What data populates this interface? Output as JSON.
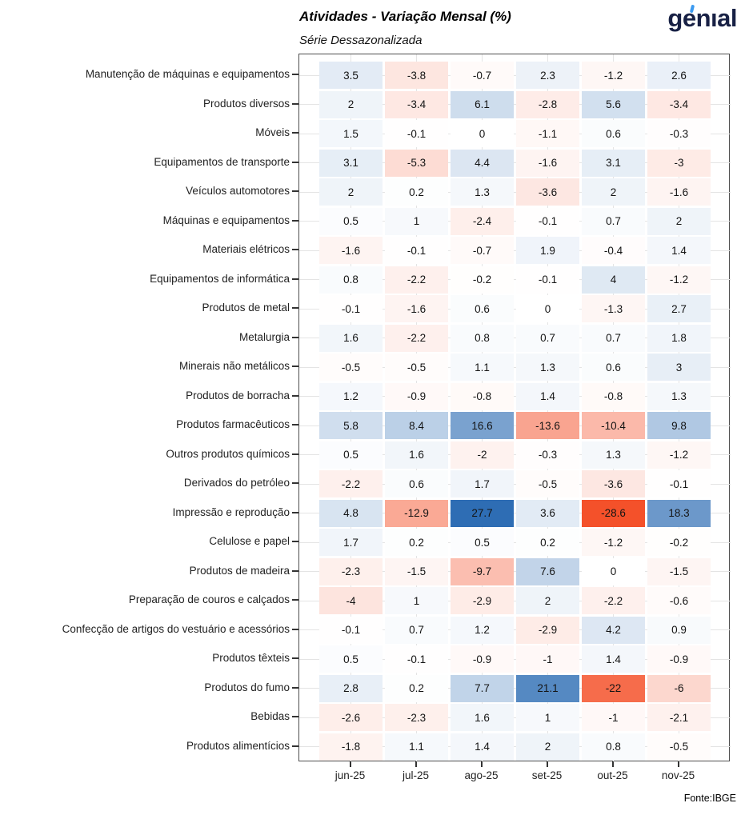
{
  "header": {
    "title": "Atividades - Variação Mensal (%)",
    "subtitle": "Série Dessazonalizada",
    "logo_text": "genıal"
  },
  "footer": {
    "source": "Fonte:IBGE"
  },
  "chart_data": {
    "type": "heatmap",
    "title": "Atividades - Variação Mensal (%)",
    "subtitle": "Série Dessazonalizada",
    "columns": [
      "jun-25",
      "jul-25",
      "ago-25",
      "set-25",
      "out-25",
      "nov-25"
    ],
    "rows": [
      {
        "name": "Manutenção de máquinas e equipamentos",
        "values": [
          3.5,
          -3.8,
          -0.7,
          2.3,
          -1.2,
          2.6
        ]
      },
      {
        "name": "Produtos diversos",
        "values": [
          2,
          -3.4,
          6.1,
          -2.8,
          5.6,
          -3.4
        ]
      },
      {
        "name": "Móveis",
        "values": [
          1.5,
          -0.1,
          0,
          -1.1,
          0.6,
          -0.3
        ]
      },
      {
        "name": "Equipamentos de transporte",
        "values": [
          3.1,
          -5.3,
          4.4,
          -1.6,
          3.1,
          -3
        ]
      },
      {
        "name": "Veículos automotores",
        "values": [
          2,
          0.2,
          1.3,
          -3.6,
          2,
          -1.6
        ]
      },
      {
        "name": "Máquinas e equipamentos",
        "values": [
          0.5,
          1,
          -2.4,
          -0.1,
          0.7,
          2
        ]
      },
      {
        "name": "Materiais elétricos",
        "values": [
          -1.6,
          -0.1,
          -0.7,
          1.9,
          -0.4,
          1.4
        ]
      },
      {
        "name": "Equipamentos de informática",
        "values": [
          0.8,
          -2.2,
          -0.2,
          -0.1,
          4,
          -1.2
        ]
      },
      {
        "name": "Produtos de metal",
        "values": [
          -0.1,
          -1.6,
          0.6,
          0,
          -1.3,
          2.7
        ]
      },
      {
        "name": "Metalurgia",
        "values": [
          1.6,
          -2.2,
          0.8,
          0.7,
          0.7,
          1.8
        ]
      },
      {
        "name": "Minerais não metálicos",
        "values": [
          -0.5,
          -0.5,
          1.1,
          1.3,
          0.6,
          3
        ]
      },
      {
        "name": "Produtos de borracha",
        "values": [
          1.2,
          -0.9,
          -0.8,
          1.4,
          -0.8,
          1.3
        ]
      },
      {
        "name": "Produtos farmacêuticos",
        "values": [
          5.8,
          8.4,
          16.6,
          -13.6,
          -10.4,
          9.8
        ]
      },
      {
        "name": "Outros produtos químicos",
        "values": [
          0.5,
          1.6,
          -2,
          -0.3,
          1.3,
          -1.2
        ]
      },
      {
        "name": "Derivados do petróleo",
        "values": [
          -2.2,
          0.6,
          1.7,
          -0.5,
          -3.6,
          -0.1
        ]
      },
      {
        "name": "Impressão e reprodução",
        "values": [
          4.8,
          -12.9,
          27.7,
          3.6,
          -28.6,
          18.3
        ]
      },
      {
        "name": "Celulose e papel",
        "values": [
          1.7,
          0.2,
          0.5,
          0.2,
          -1.2,
          -0.2
        ]
      },
      {
        "name": "Produtos de madeira",
        "values": [
          -2.3,
          -1.5,
          -9.7,
          7.6,
          0,
          -1.5
        ]
      },
      {
        "name": "Preparação de couros e calçados",
        "values": [
          -4,
          1,
          -2.9,
          2,
          -2.2,
          -0.6
        ]
      },
      {
        "name": "Confecção de artigos do vestuário e acessórios",
        "values": [
          -0.1,
          0.7,
          1.2,
          -2.9,
          4.2,
          0.9
        ]
      },
      {
        "name": "Produtos têxteis",
        "values": [
          0.5,
          -0.1,
          -0.9,
          -1,
          1.4,
          -0.9
        ]
      },
      {
        "name": "Produtos do fumo",
        "values": [
          2.8,
          0.2,
          7.7,
          21.1,
          -22,
          -6
        ]
      },
      {
        "name": "Bebidas",
        "values": [
          -2.6,
          -2.3,
          1.6,
          1,
          -1,
          -2.1
        ]
      },
      {
        "name": "Produtos alimentícios",
        "values": [
          -1.8,
          1.1,
          1.4,
          2,
          0.8,
          -0.5
        ]
      }
    ],
    "colors": {
      "positive_max": "#2e6db4",
      "negative_max": "#f4512a",
      "zero": "#ffffff",
      "logo_navy": "#182145",
      "logo_accent_blue": "#3b9af0"
    },
    "scale_max_abs": 26,
    "legend_position": "none",
    "grid": true,
    "source": "Fonte:IBGE"
  }
}
